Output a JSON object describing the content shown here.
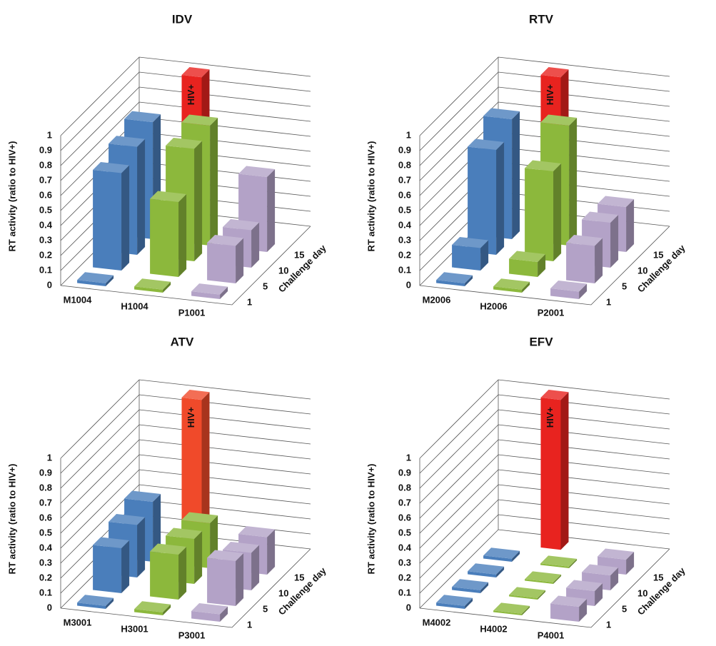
{
  "chart_data": [
    {
      "type": "bar3d",
      "title": "IDV",
      "y_label": "RT activity (ratio to HIV+)",
      "depth_label": "Challenge day",
      "depth_categories": [
        "1",
        "5",
        "10",
        "15"
      ],
      "series": [
        {
          "name": "M1004",
          "color": "#4a7ebb",
          "values": [
            0.02,
            0.65,
            0.72,
            0.78
          ]
        },
        {
          "name": "H1004",
          "color": "#8cb83c",
          "values": [
            0.02,
            0.5,
            0.75,
            0.8
          ]
        },
        {
          "name": "P1001",
          "color": "#b3a2c7",
          "values": [
            0.03,
            0.25,
            0.25,
            0.5
          ]
        }
      ],
      "control": {
        "label": "HIV+",
        "value": 1,
        "color": "#e8231f"
      },
      "ylim": [
        0,
        1
      ],
      "yticks": [
        0,
        0.1,
        0.2,
        0.3,
        0.4,
        0.5,
        0.6,
        0.7,
        0.8,
        0.9,
        1
      ],
      "grid": true
    },
    {
      "type": "bar3d",
      "title": "RTV",
      "y_label": "RT activity (ratio to HIV+)",
      "depth_label": "Challenge day",
      "depth_categories": [
        "1",
        "5",
        "10",
        "15"
      ],
      "series": [
        {
          "name": "M2006",
          "color": "#4a7ebb",
          "values": [
            0.02,
            0.15,
            0.7,
            0.8
          ]
        },
        {
          "name": "H2006",
          "color": "#8cb83c",
          "values": [
            0.02,
            0.1,
            0.6,
            0.8
          ]
        },
        {
          "name": "P2001",
          "color": "#b3a2c7",
          "values": [
            0.05,
            0.25,
            0.3,
            0.3
          ]
        }
      ],
      "control": {
        "label": "HIV+",
        "value": 1,
        "color": "#e8231f"
      },
      "ylim": [
        0,
        1
      ],
      "yticks": [
        0,
        0.1,
        0.2,
        0.3,
        0.4,
        0.5,
        0.6,
        0.7,
        0.8,
        0.9,
        1
      ],
      "grid": true
    },
    {
      "type": "bar3d",
      "title": "ATV",
      "y_label": "RT activity (ratio to HIV+)",
      "depth_label": "Challenge day",
      "depth_categories": [
        "1",
        "5",
        "10",
        "15"
      ],
      "series": [
        {
          "name": "M3001",
          "color": "#4a7ebb",
          "values": [
            0.02,
            0.3,
            0.35,
            0.4
          ]
        },
        {
          "name": "H3001",
          "color": "#8cb83c",
          "values": [
            0.02,
            0.3,
            0.3,
            0.3
          ]
        },
        {
          "name": "P3001",
          "color": "#b3a2c7",
          "values": [
            0.05,
            0.3,
            0.25,
            0.25
          ]
        }
      ],
      "control": {
        "label": "HIV+",
        "value": 1,
        "color": "#f04a2a"
      },
      "ylim": [
        0,
        1
      ],
      "yticks": [
        0,
        0.1,
        0.2,
        0.3,
        0.4,
        0.5,
        0.6,
        0.7,
        0.8,
        0.9,
        1
      ],
      "grid": true
    },
    {
      "type": "bar3d",
      "title": "EFV",
      "y_label": "RT activity (ratio to HIV+)",
      "depth_label": "Challenge day",
      "depth_categories": [
        "1",
        "5",
        "10",
        "15"
      ],
      "series": [
        {
          "name": "M4002",
          "color": "#4a7ebb",
          "values": [
            0.02,
            0.02,
            0.02,
            0.02
          ]
        },
        {
          "name": "H4002",
          "color": "#8cb83c",
          "values": [
            0.01,
            0.01,
            0.01,
            0.01
          ]
        },
        {
          "name": "P4001",
          "color": "#b3a2c7",
          "values": [
            0.1,
            0.1,
            0.1,
            0.1
          ]
        }
      ],
      "control": {
        "label": "HIV+",
        "value": 1,
        "color": "#e8231f"
      },
      "ylim": [
        0,
        1
      ],
      "yticks": [
        0,
        0.1,
        0.2,
        0.3,
        0.4,
        0.5,
        0.6,
        0.7,
        0.8,
        0.9,
        1
      ],
      "grid": true
    }
  ]
}
